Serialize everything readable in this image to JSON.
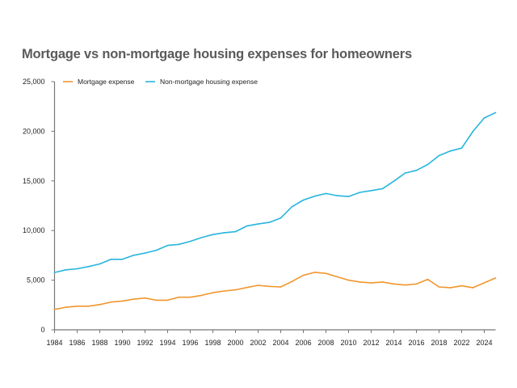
{
  "chart_data": {
    "type": "line",
    "title": "Mortgage vs non-mortgage housing expenses for homeowners",
    "xlabel": "",
    "ylabel": "",
    "ylim": [
      0,
      25000
    ],
    "yticks": [
      "0",
      "5,000",
      "10,000",
      "15,000",
      "20,000",
      "25,000"
    ],
    "ytick_values": [
      0,
      5000,
      10000,
      15000,
      20000,
      25000
    ],
    "x": [
      1984,
      1985,
      1986,
      1987,
      1988,
      1989,
      1990,
      1991,
      1992,
      1993,
      1994,
      1995,
      1996,
      1997,
      1998,
      1999,
      2000,
      2001,
      2002,
      2003,
      2004,
      2005,
      2006,
      2007,
      2008,
      2009,
      2010,
      2011,
      2012,
      2013,
      2014,
      2015,
      2016,
      2017,
      2018,
      2020,
      2022,
      2023,
      2024,
      2025
    ],
    "xticks": [
      "1984",
      "1986",
      "1988",
      "1990",
      "1992",
      "1994",
      "1996",
      "1998",
      "2000",
      "2002",
      "2004",
      "2006",
      "2008",
      "2010",
      "2012",
      "2014",
      "2016",
      "2018",
      "2022",
      "2024"
    ],
    "legend": "top-left",
    "grid": false,
    "series": [
      {
        "name": "Mortgage expense",
        "color": "#f0962e",
        "values": [
          2050,
          2270,
          2380,
          2380,
          2540,
          2790,
          2900,
          3090,
          3200,
          2980,
          2980,
          3280,
          3280,
          3470,
          3740,
          3910,
          4020,
          4260,
          4480,
          4370,
          4320,
          4870,
          5490,
          5790,
          5680,
          5330,
          5000,
          4810,
          4730,
          4810,
          4620,
          4510,
          4620,
          5080,
          4320,
          4240,
          4430,
          4240,
          4730,
          5220
        ]
      },
      {
        "name": "Non-mortgage housing expense",
        "color": "#27b5de",
        "values": [
          5770,
          6040,
          6150,
          6370,
          6640,
          7100,
          7100,
          7510,
          7730,
          8010,
          8500,
          8610,
          8910,
          9290,
          9590,
          9780,
          9890,
          10460,
          10660,
          10820,
          11260,
          12400,
          13070,
          13460,
          13730,
          13510,
          13430,
          13840,
          14020,
          14220,
          14970,
          15790,
          16060,
          16650,
          17550,
          18010,
          18310,
          19990,
          21340,
          21880
        ]
      }
    ]
  }
}
